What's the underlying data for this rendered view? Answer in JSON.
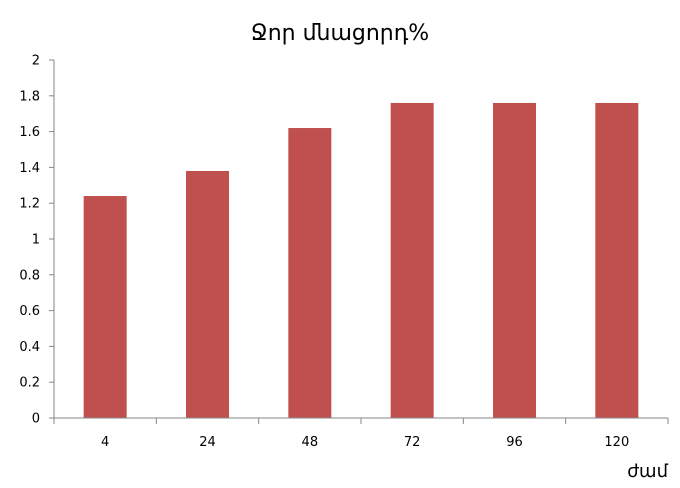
{
  "chart_data": {
    "type": "bar",
    "title": "Ջոր մնացորդ%",
    "xlabel": "ժամ",
    "ylabel": "",
    "categories": [
      "4",
      "24",
      "48",
      "72",
      "96",
      "120"
    ],
    "values": [
      1.24,
      1.38,
      1.62,
      1.76,
      1.76,
      1.76
    ],
    "ylim": [
      0,
      2
    ],
    "yticks": [
      "0",
      "0.2",
      "0.4",
      "0.6",
      "0.8",
      "1",
      "1.2",
      "1.4",
      "1.6",
      "1.8",
      "2"
    ],
    "grid": false,
    "legend": "none",
    "bar_color": "#c0504d",
    "axis_color": "#868686"
  }
}
